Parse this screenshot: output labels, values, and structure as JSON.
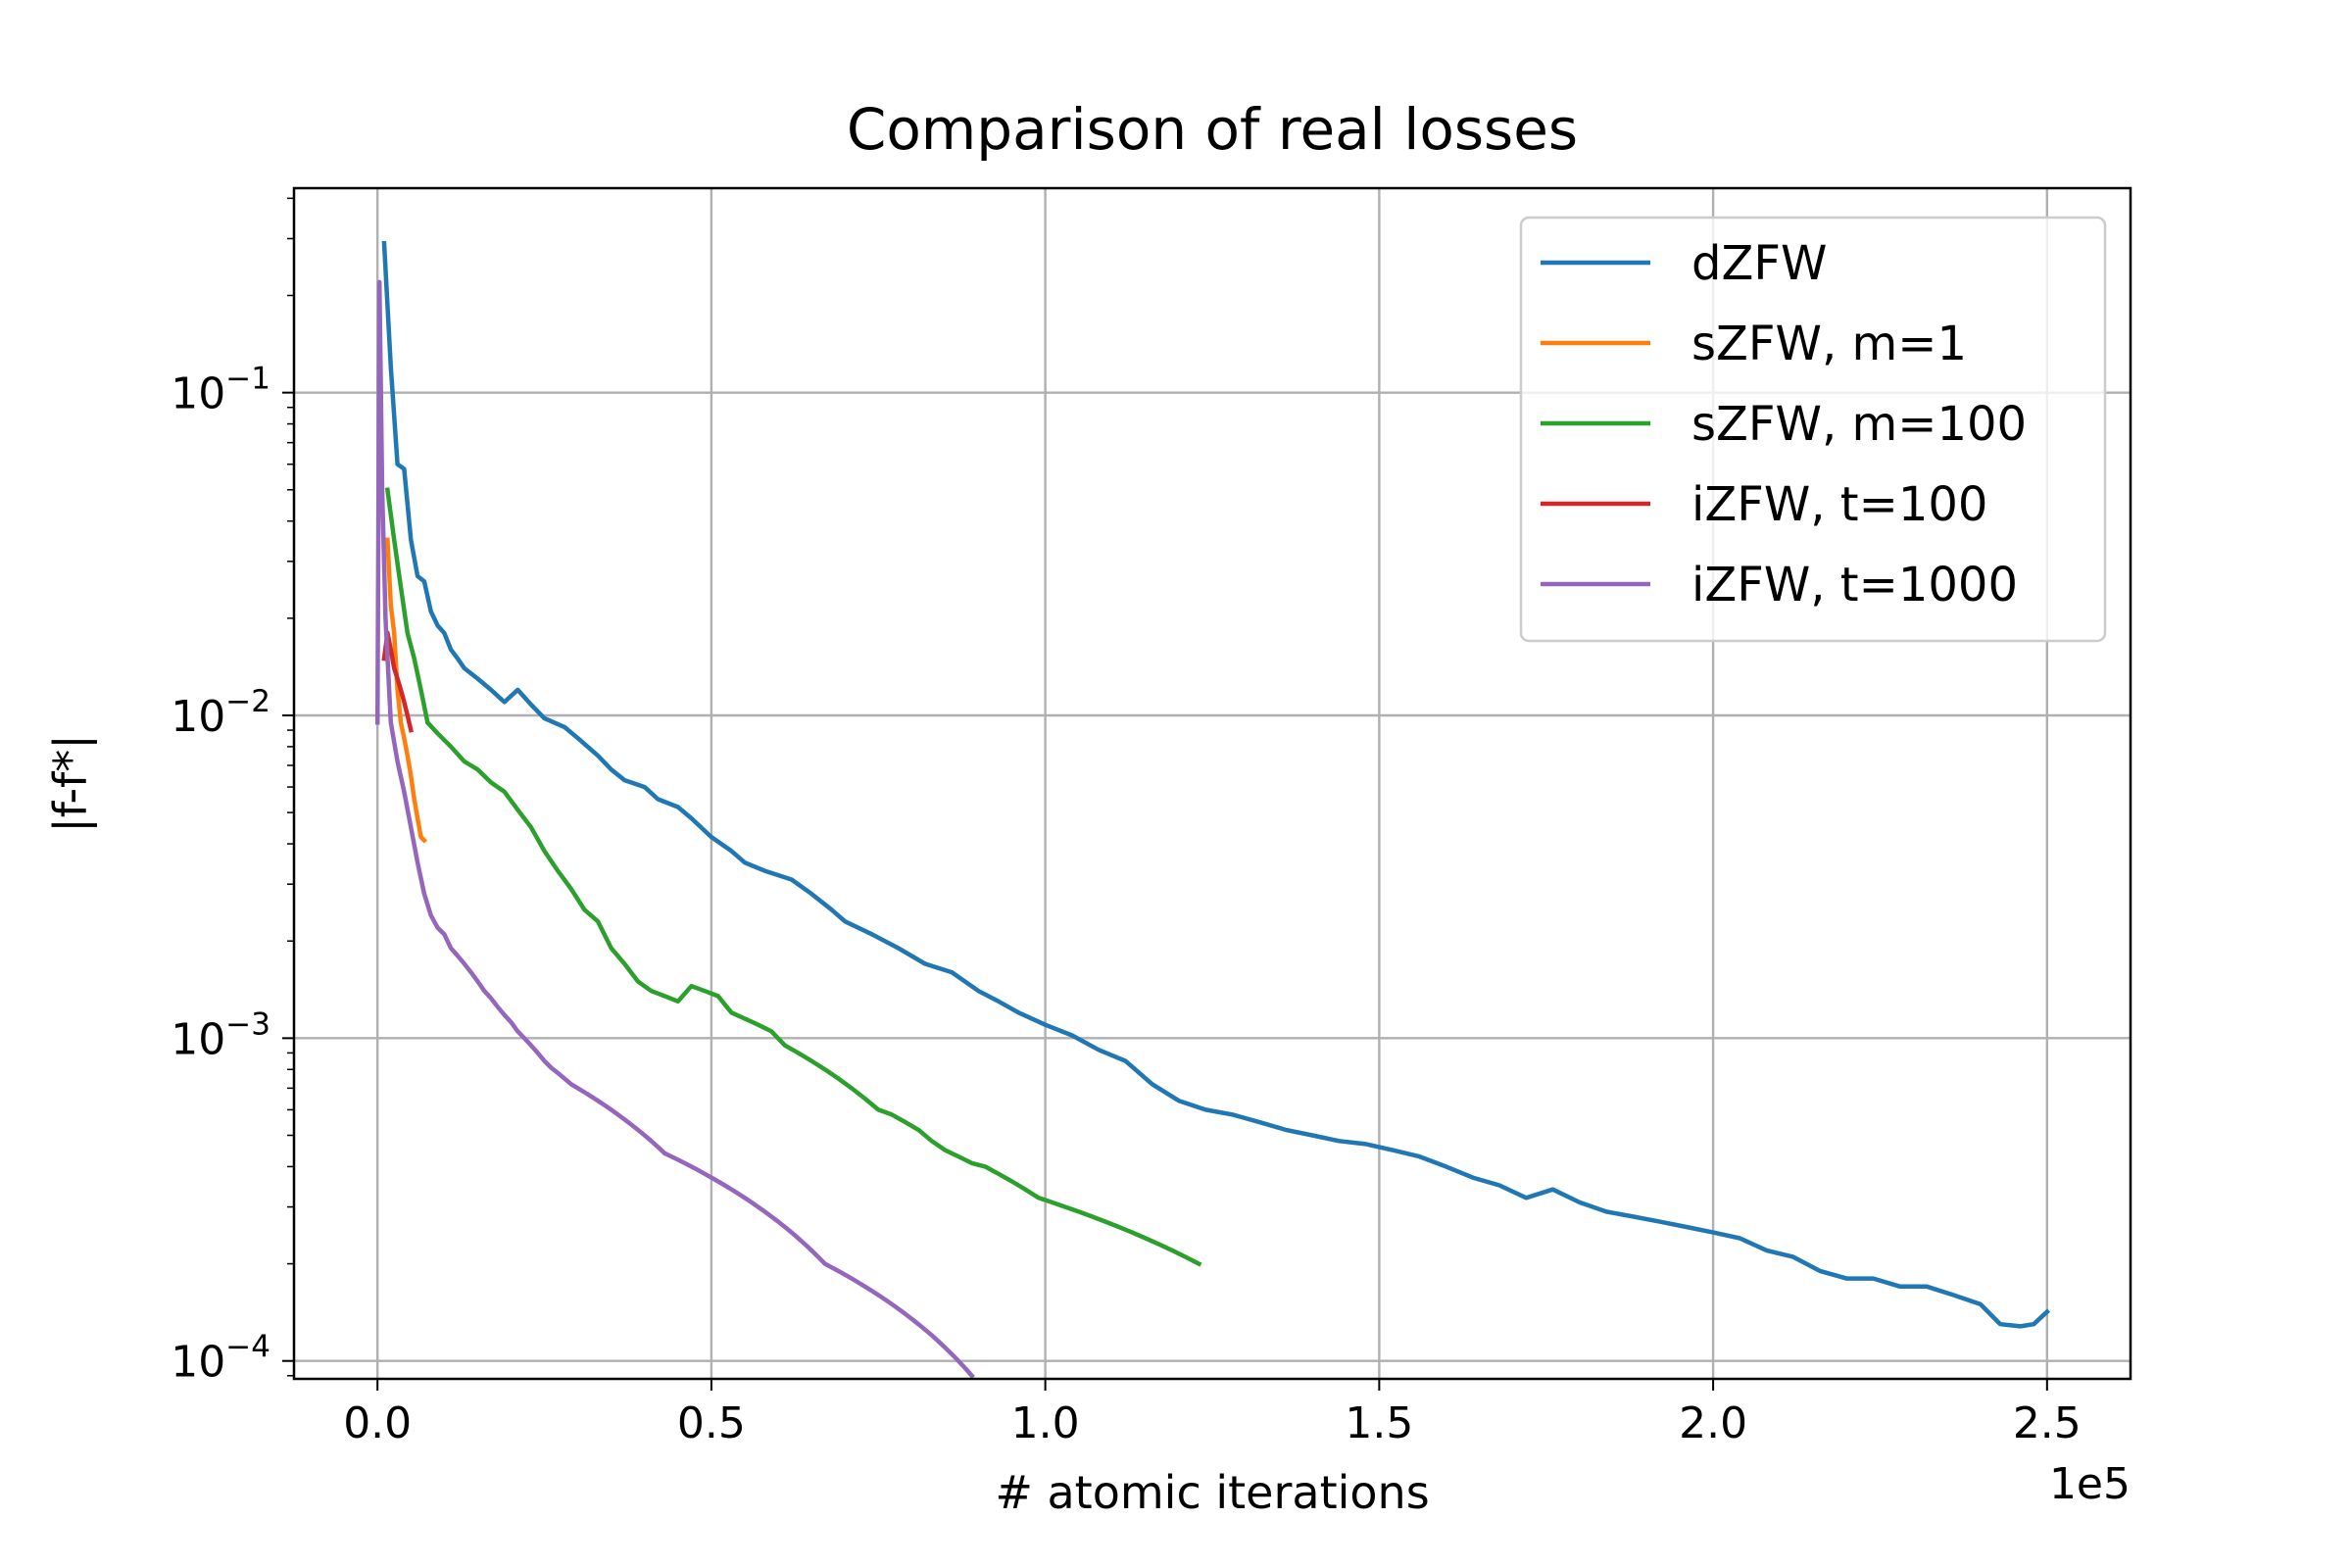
{
  "chart_data": {
    "type": "line",
    "title": "Comparison of real losses",
    "xlabel": "# atomic iterations",
    "ylabel": "|f-f*|",
    "x_offset_label": "1e5",
    "xscale": "linear",
    "yscale": "log",
    "xlim": [
      -12500,
      262500
    ],
    "ylim": [
      8.8e-05,
      0.43
    ],
    "grid": true,
    "legend_position": "upper right",
    "x_ticks": [
      0,
      50000,
      100000,
      150000,
      200000,
      250000
    ],
    "x_tick_labels": [
      "0.0",
      "0.5",
      "1.0",
      "1.5",
      "2.0",
      "2.5"
    ],
    "y_ticks": [
      0.1,
      0.01,
      0.001,
      0.0001
    ],
    "y_tick_labels": [
      {
        "base": "10",
        "exp": "−1"
      },
      {
        "base": "10",
        "exp": "−2"
      },
      {
        "base": "10",
        "exp": "−3"
      },
      {
        "base": "10",
        "exp": "−4"
      }
    ],
    "series": [
      {
        "name": "dZFW",
        "color": "#1f77b4",
        "points": [
          [
            1000,
            0.29
          ],
          [
            2000,
            0.12
          ],
          [
            3000,
            0.06
          ],
          [
            4000,
            0.058
          ],
          [
            5000,
            0.035
          ],
          [
            6000,
            0.027
          ],
          [
            7000,
            0.026
          ],
          [
            8000,
            0.021
          ],
          [
            9000,
            0.019
          ],
          [
            10000,
            0.018
          ],
          [
            11000,
            0.016
          ],
          [
            12000,
            0.015
          ],
          [
            13000,
            0.014
          ],
          [
            15000,
            0.013
          ],
          [
            17000,
            0.012
          ],
          [
            19000,
            0.011
          ],
          [
            21000,
            0.012
          ],
          [
            23000,
            0.0108
          ],
          [
            25000,
            0.0098
          ],
          [
            28000,
            0.0092
          ],
          [
            30000,
            0.0085
          ],
          [
            33000,
            0.0075
          ],
          [
            35000,
            0.0068
          ],
          [
            37000,
            0.0063
          ],
          [
            40000,
            0.006
          ],
          [
            42000,
            0.0055
          ],
          [
            45000,
            0.0052
          ],
          [
            47000,
            0.0048
          ],
          [
            50000,
            0.0042
          ],
          [
            53000,
            0.0038
          ],
          [
            55000,
            0.0035
          ],
          [
            58000,
            0.0033
          ],
          [
            62000,
            0.0031
          ],
          [
            65000,
            0.0028
          ],
          [
            68000,
            0.0025
          ],
          [
            70000,
            0.0023
          ],
          [
            74000,
            0.0021
          ],
          [
            78000,
            0.0019
          ],
          [
            82000,
            0.0017
          ],
          [
            86000,
            0.0016
          ],
          [
            90000,
            0.0014
          ],
          [
            93000,
            0.0013
          ],
          [
            96000,
            0.0012
          ],
          [
            100000,
            0.0011
          ],
          [
            104000,
            0.00102
          ],
          [
            108000,
            0.00092
          ],
          [
            112000,
            0.00085
          ],
          [
            116000,
            0.00072
          ],
          [
            120000,
            0.00064
          ],
          [
            124000,
            0.0006
          ],
          [
            128000,
            0.00058
          ],
          [
            132000,
            0.00055
          ],
          [
            136000,
            0.00052
          ],
          [
            140000,
            0.0005
          ],
          [
            144000,
            0.00048
          ],
          [
            148000,
            0.00047
          ],
          [
            152000,
            0.00045
          ],
          [
            156000,
            0.00043
          ],
          [
            160000,
            0.0004
          ],
          [
            164000,
            0.00037
          ],
          [
            168000,
            0.00035
          ],
          [
            172000,
            0.00032
          ],
          [
            176000,
            0.00034
          ],
          [
            180000,
            0.00031
          ],
          [
            184000,
            0.00029
          ],
          [
            188000,
            0.00028
          ],
          [
            192000,
            0.00027
          ],
          [
            196000,
            0.00026
          ],
          [
            200000,
            0.00025
          ],
          [
            204000,
            0.00024
          ],
          [
            208000,
            0.00022
          ],
          [
            212000,
            0.00021
          ],
          [
            216000,
            0.00019
          ],
          [
            220000,
            0.00018
          ],
          [
            224000,
            0.00018
          ],
          [
            228000,
            0.00017
          ],
          [
            232000,
            0.00017
          ],
          [
            236000,
            0.00016
          ],
          [
            240000,
            0.00015
          ],
          [
            243000,
            0.00013
          ],
          [
            246000,
            0.000128
          ],
          [
            248000,
            0.00013
          ],
          [
            250000,
            0.000142
          ]
        ]
      },
      {
        "name": "sZFW, m=1",
        "color": "#ff7f0e",
        "points": [
          [
            1500,
            0.035
          ],
          [
            2000,
            0.022
          ],
          [
            2500,
            0.018
          ],
          [
            3000,
            0.012
          ],
          [
            3500,
            0.0095
          ],
          [
            4000,
            0.0085
          ],
          [
            4500,
            0.0075
          ],
          [
            5000,
            0.0065
          ],
          [
            5500,
            0.0055
          ],
          [
            6000,
            0.0048
          ],
          [
            6500,
            0.0042
          ],
          [
            7000,
            0.0041
          ]
        ]
      },
      {
        "name": "sZFW, m=100",
        "color": "#2ca02c",
        "points": [
          [
            1500,
            0.05
          ],
          [
            2500,
            0.035
          ],
          [
            3500,
            0.025
          ],
          [
            4500,
            0.018
          ],
          [
            5500,
            0.015
          ],
          [
            6500,
            0.012
          ],
          [
            7500,
            0.0095
          ],
          [
            9000,
            0.0088
          ],
          [
            11000,
            0.008
          ],
          [
            13000,
            0.0072
          ],
          [
            15000,
            0.0068
          ],
          [
            17000,
            0.0062
          ],
          [
            19000,
            0.0058
          ],
          [
            21000,
            0.0051
          ],
          [
            23000,
            0.0045
          ],
          [
            25000,
            0.0038
          ],
          [
            27000,
            0.0033
          ],
          [
            29000,
            0.0029
          ],
          [
            31000,
            0.0025
          ],
          [
            33000,
            0.0023
          ],
          [
            35000,
            0.0019
          ],
          [
            37000,
            0.0017
          ],
          [
            39000,
            0.0015
          ],
          [
            41000,
            0.0014
          ],
          [
            43000,
            0.00135
          ],
          [
            45000,
            0.0013
          ],
          [
            47000,
            0.00145
          ],
          [
            49000,
            0.0014
          ],
          [
            51000,
            0.00135
          ],
          [
            53000,
            0.0012
          ],
          [
            55000,
            0.00115
          ],
          [
            57000,
            0.0011
          ],
          [
            59000,
            0.00105
          ],
          [
            61000,
            0.00095
          ],
          [
            63000,
            0.0009
          ],
          [
            65000,
            0.00085
          ],
          [
            67000,
            0.0008
          ],
          [
            69000,
            0.00075
          ],
          [
            71000,
            0.0007
          ],
          [
            73000,
            0.00065
          ],
          [
            75000,
            0.0006
          ],
          [
            77000,
            0.00058
          ],
          [
            79000,
            0.00055
          ],
          [
            81000,
            0.00052
          ],
          [
            83000,
            0.00048
          ],
          [
            85000,
            0.00045
          ],
          [
            87000,
            0.00043
          ],
          [
            89000,
            0.00041
          ],
          [
            91000,
            0.0004
          ],
          [
            93000,
            0.00038
          ],
          [
            95000,
            0.00036
          ],
          [
            97000,
            0.00034
          ],
          [
            99000,
            0.00032
          ],
          [
            101000,
            0.00031
          ],
          [
            103000,
            0.0003
          ],
          [
            105000,
            0.00029
          ],
          [
            107000,
            0.00028
          ],
          [
            109000,
            0.00027
          ],
          [
            111000,
            0.00026
          ],
          [
            113000,
            0.00025
          ],
          [
            115000,
            0.00024
          ],
          [
            117000,
            0.00023
          ],
          [
            119000,
            0.00022
          ],
          [
            121000,
            0.00021
          ],
          [
            123000,
            0.0002
          ]
        ]
      },
      {
        "name": "iZFW, t=100",
        "color": "#d62728",
        "points": [
          [
            1000,
            0.015
          ],
          [
            1500,
            0.018
          ],
          [
            2000,
            0.016
          ],
          [
            2500,
            0.014
          ],
          [
            3000,
            0.013
          ],
          [
            3500,
            0.012
          ],
          [
            4000,
            0.011
          ],
          [
            4500,
            0.01
          ],
          [
            5000,
            0.009
          ]
        ]
      },
      {
        "name": "iZFW, t=1000",
        "color": "#9467bd",
        "points": [
          [
            0,
            0.0095
          ],
          [
            300,
            0.22
          ],
          [
            700,
            0.05
          ],
          [
            1200,
            0.02
          ],
          [
            2000,
            0.0095
          ],
          [
            3000,
            0.0072
          ],
          [
            4000,
            0.0058
          ],
          [
            5000,
            0.0045
          ],
          [
            6000,
            0.0035
          ],
          [
            7000,
            0.0028
          ],
          [
            8000,
            0.0024
          ],
          [
            9000,
            0.0022
          ],
          [
            10000,
            0.0021
          ],
          [
            11000,
            0.0019
          ],
          [
            12000,
            0.0018
          ],
          [
            13000,
            0.0017
          ],
          [
            14000,
            0.0016
          ],
          [
            15000,
            0.0015
          ],
          [
            16000,
            0.0014
          ],
          [
            17000,
            0.00133
          ],
          [
            18000,
            0.00125
          ],
          [
            19000,
            0.00118
          ],
          [
            20000,
            0.00112
          ],
          [
            21000,
            0.00105
          ],
          [
            22000,
            0.001
          ],
          [
            23000,
            0.00095
          ],
          [
            24000,
            0.0009
          ],
          [
            25000,
            0.00085
          ],
          [
            26000,
            0.00081
          ],
          [
            27000,
            0.00078
          ],
          [
            28000,
            0.00075
          ],
          [
            29000,
            0.00072
          ],
          [
            30000,
            0.0007
          ],
          [
            31000,
            0.00068
          ],
          [
            32000,
            0.00066
          ],
          [
            33000,
            0.00064
          ],
          [
            34000,
            0.00062
          ],
          [
            35000,
            0.0006
          ],
          [
            36000,
            0.00058
          ],
          [
            37000,
            0.00056
          ],
          [
            38000,
            0.00054
          ],
          [
            39000,
            0.00052
          ],
          [
            40000,
            0.0005
          ],
          [
            41000,
            0.00048
          ],
          [
            42000,
            0.00046
          ],
          [
            43000,
            0.00044
          ],
          [
            44000,
            0.00043
          ],
          [
            45000,
            0.00042
          ],
          [
            46000,
            0.00041
          ],
          [
            47000,
            0.0004
          ],
          [
            48000,
            0.00039
          ],
          [
            49000,
            0.00038
          ],
          [
            50000,
            0.00037
          ],
          [
            51000,
            0.00036
          ],
          [
            52000,
            0.00035
          ],
          [
            53000,
            0.00034
          ],
          [
            54000,
            0.00033
          ],
          [
            55000,
            0.00032
          ],
          [
            56000,
            0.00031
          ],
          [
            57000,
            0.0003
          ],
          [
            58000,
            0.00029
          ],
          [
            59000,
            0.00028
          ],
          [
            60000,
            0.00027
          ],
          [
            61000,
            0.00026
          ],
          [
            62000,
            0.00025
          ],
          [
            63000,
            0.00024
          ],
          [
            64000,
            0.00023
          ],
          [
            65000,
            0.00022
          ],
          [
            66000,
            0.00021
          ],
          [
            67000,
            0.0002
          ],
          [
            68000,
            0.000195
          ],
          [
            69000,
            0.00019
          ],
          [
            70000,
            0.000185
          ],
          [
            71000,
            0.00018
          ],
          [
            72000,
            0.000175
          ],
          [
            73000,
            0.00017
          ],
          [
            74000,
            0.000165
          ],
          [
            75000,
            0.00016
          ],
          [
            76000,
            0.000155
          ],
          [
            77000,
            0.00015
          ],
          [
            78000,
            0.000145
          ],
          [
            79000,
            0.00014
          ],
          [
            80000,
            0.000135
          ],
          [
            81000,
            0.00013
          ],
          [
            82000,
            0.000125
          ],
          [
            83000,
            0.00012
          ],
          [
            84000,
            0.000115
          ],
          [
            85000,
            0.00011
          ],
          [
            86000,
            0.000105
          ],
          [
            87000,
            0.0001
          ],
          [
            88000,
            9.5e-05
          ],
          [
            89000,
            9e-05
          ]
        ]
      }
    ]
  }
}
